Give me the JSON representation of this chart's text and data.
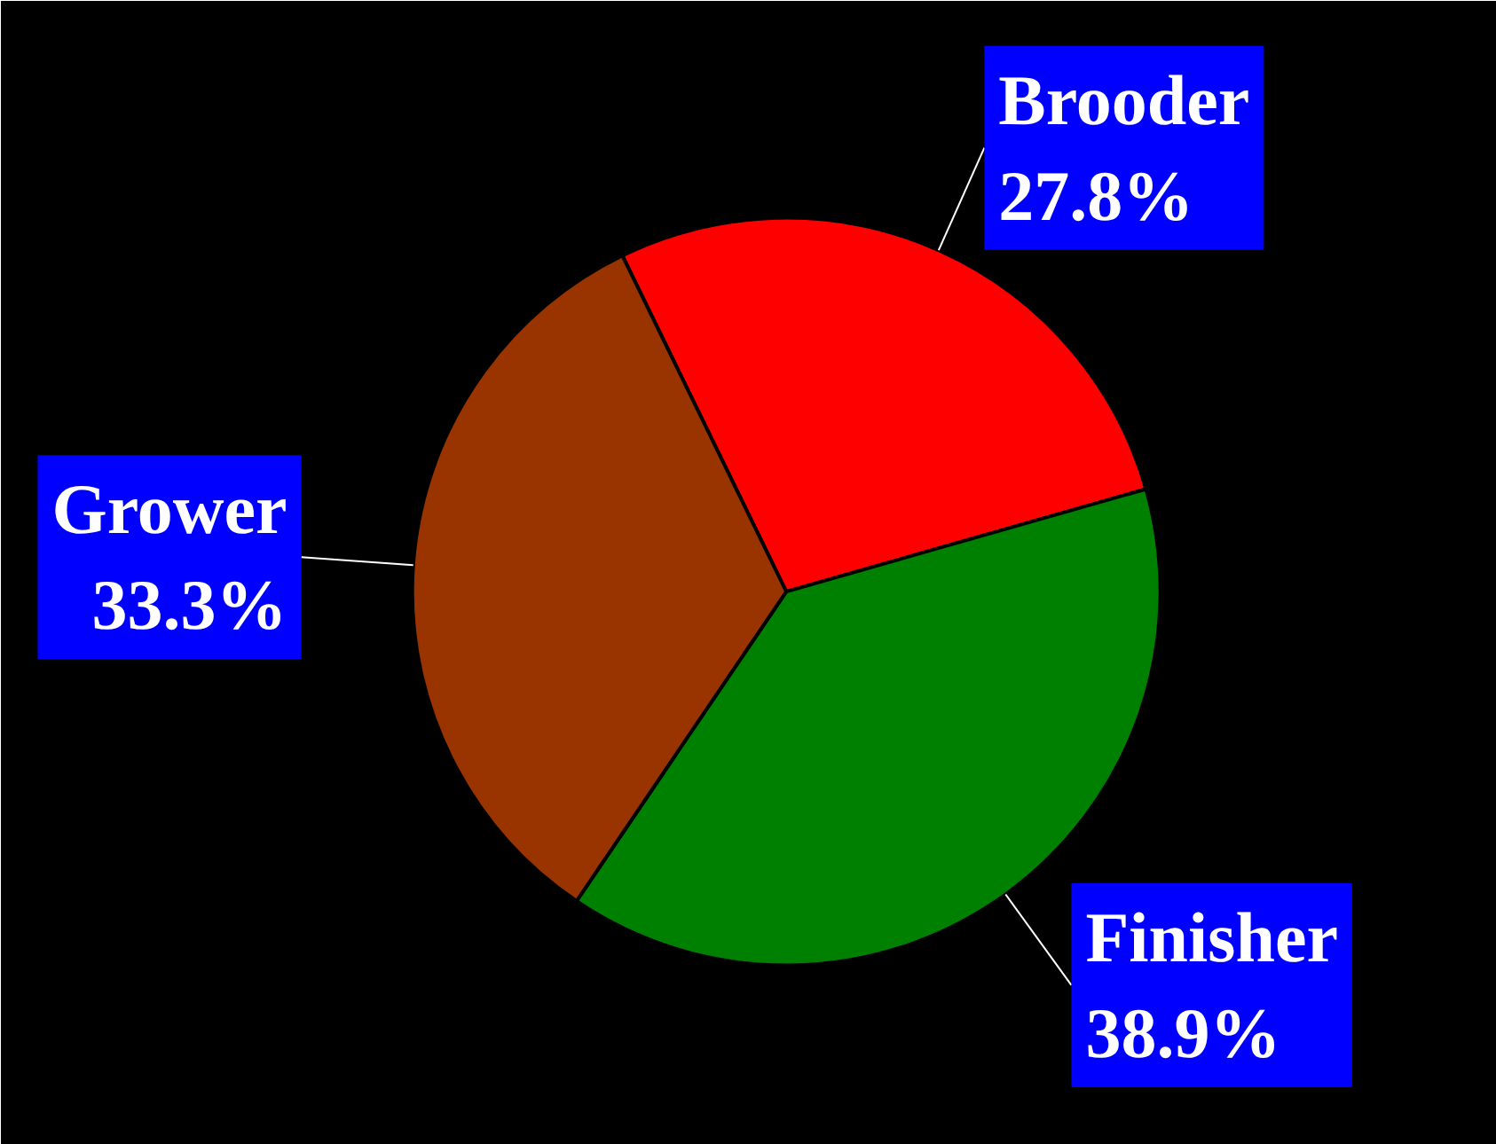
{
  "chart_data": {
    "type": "pie",
    "categories": [
      "Brooder",
      "Finisher",
      "Grower"
    ],
    "values": [
      27.8,
      38.9,
      33.3
    ],
    "colors": [
      "#ff0000",
      "#008000",
      "#993300"
    ],
    "value_labels": [
      "27.8%",
      "38.9%",
      "33.3%"
    ]
  }
}
